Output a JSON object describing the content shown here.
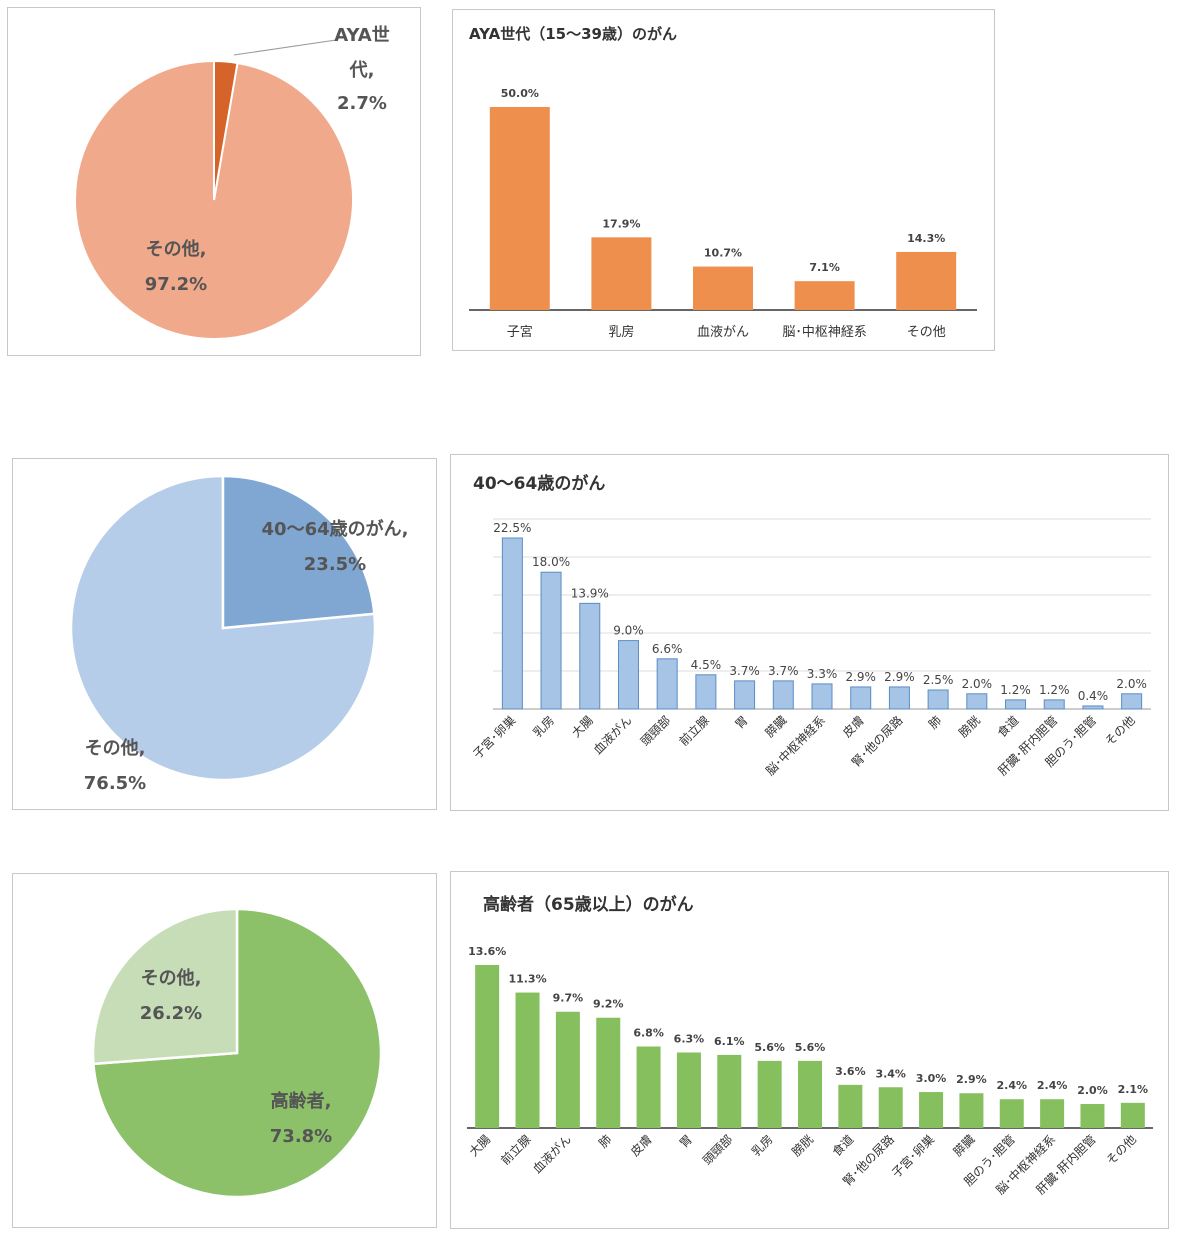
{
  "colors": {
    "aya_pie_main": "#f0a98a",
    "aya_pie_slice": "#d4642a",
    "aya_bar": "#ee8f4e",
    "mid_pie_main": "#b6cde9",
    "mid_pie_slice": "#7fa7d2",
    "mid_bar": "#a6c4e6",
    "mid_bar_stroke": "#5b8cc4",
    "old_pie_main": "#8cc16a",
    "old_pie_slice": "#c7ddb8",
    "old_bar": "#86bf5e"
  },
  "chart_data": [
    {
      "type": "pie",
      "slices": [
        {
          "name_line1": "AYA世",
          "name_line2": "代,",
          "pct_label": "2.7%",
          "value": 2.7
        },
        {
          "name_line1": "その他,",
          "pct_label": "97.2%",
          "value": 97.2
        }
      ]
    },
    {
      "type": "bar",
      "title": "AYA世代（15～39歳）のがん",
      "categories": [
        "子宮",
        "乳房",
        "血液がん",
        "脳･中枢神経系",
        "その他"
      ],
      "values": [
        50.0,
        17.9,
        10.7,
        7.1,
        14.3
      ],
      "labels": [
        "50.0%",
        "17.9%",
        "10.7%",
        "7.1%",
        "14.3%"
      ],
      "ylim": [
        0,
        50
      ]
    },
    {
      "type": "pie",
      "slices": [
        {
          "name_line1": "40～64歳のがん,",
          "pct_label": "23.5%",
          "value": 23.5
        },
        {
          "name_line1": "その他,",
          "pct_label": "76.5%",
          "value": 76.5
        }
      ]
    },
    {
      "type": "bar",
      "title": "40～64歳のがん",
      "categories": [
        "子宮･卵巣",
        "乳房",
        "大腸",
        "血液がん",
        "頭頸部",
        "前立腺",
        "胃",
        "膵臓",
        "脳･中枢神経系",
        "皮膚",
        "腎･他の尿路",
        "肺",
        "膀胱",
        "食道",
        "肝臓･肝内胆管",
        "胆のう･胆管",
        "その他"
      ],
      "values": [
        22.5,
        18.0,
        13.9,
        9.0,
        6.6,
        4.5,
        3.7,
        3.7,
        3.3,
        2.9,
        2.9,
        2.5,
        2.0,
        1.2,
        1.2,
        0.4,
        2.0
      ],
      "labels": [
        "22.5%",
        "18.0%",
        "13.9%",
        "9.0%",
        "6.6%",
        "4.5%",
        "3.7%",
        "3.7%",
        "3.3%",
        "2.9%",
        "2.9%",
        "2.5%",
        "2.0%",
        "1.2%",
        "1.2%",
        "0.4%",
        "2.0%"
      ],
      "ylim": [
        0,
        25
      ],
      "grid": true
    },
    {
      "type": "pie",
      "slices": [
        {
          "name_line1": "その他,",
          "pct_label": "26.2%",
          "value": 26.2
        },
        {
          "name_line1": "高齢者,",
          "pct_label": "73.8%",
          "value": 73.8
        }
      ]
    },
    {
      "type": "bar",
      "title": "高齢者（65歳以上）のがん",
      "categories": [
        "大腸",
        "前立腺",
        "血液がん",
        "肺",
        "皮膚",
        "胃",
        "頭頸部",
        "乳房",
        "膀胱",
        "食道",
        "腎･他の尿路",
        "子宮･卵巣",
        "膵臓",
        "胆のう･胆管",
        "脳･中枢神経系",
        "肝臓･肝内胆管",
        "その他"
      ],
      "values": [
        13.6,
        11.3,
        9.7,
        9.2,
        6.8,
        6.3,
        6.1,
        5.6,
        5.6,
        3.6,
        3.4,
        3.0,
        2.9,
        2.4,
        2.4,
        2.0,
        2.1
      ],
      "labels": [
        "13.6%",
        "11.3%",
        "9.7%",
        "9.2%",
        "6.8%",
        "6.3%",
        "6.1%",
        "5.6%",
        "5.6%",
        "3.6%",
        "3.4%",
        "3.0%",
        "2.9%",
        "2.4%",
        "2.4%",
        "2.0%",
        "2.1%"
      ],
      "ylim": [
        0,
        13.6
      ]
    }
  ]
}
